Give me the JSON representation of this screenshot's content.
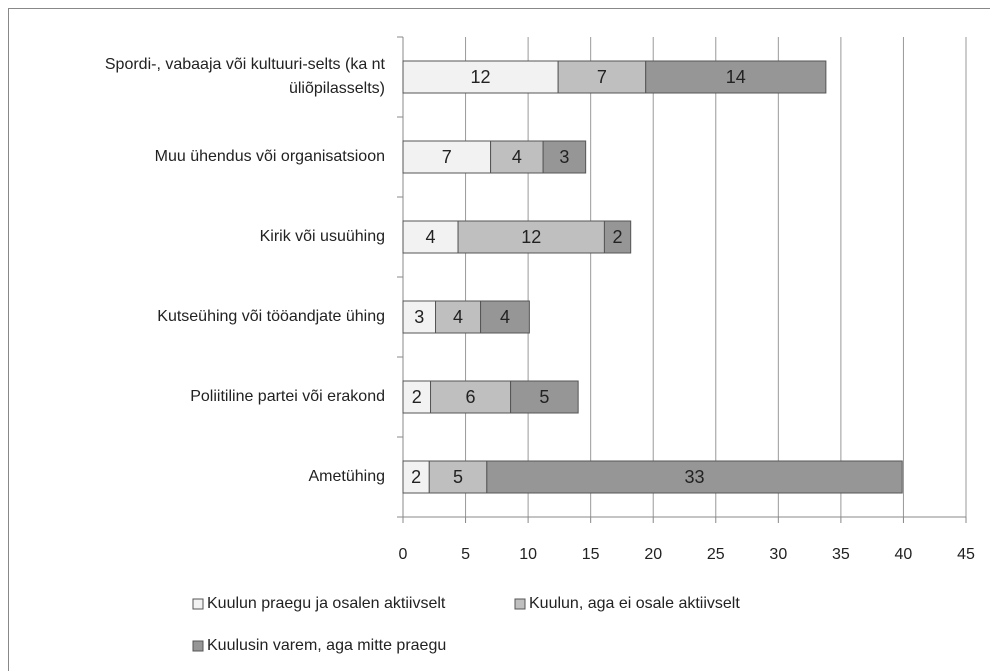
{
  "chart_data": {
    "type": "stacked_barh",
    "categories": [
      "Spordi-, vabaaja või kultuuri-selts (ka nt üliõpilasselts)",
      "Muu ühendus või organisatsioon",
      "Kirik või usuühing",
      "Kutseühing või tööandjate ühing",
      "Poliitiline partei või erakond",
      "Ametühing"
    ],
    "series": [
      {
        "name": "Kuulun praegu ja osalen aktiivselt",
        "color": "#f2f2f2",
        "values": [
          12.4,
          7.0,
          4.4,
          2.6,
          2.2,
          2.1
        ],
        "value_labels": [
          "12",
          "7",
          "4",
          "3",
          "2",
          "2"
        ]
      },
      {
        "name": "Kuulun, aga ei osale aktiivselt",
        "color": "#bfbfbf",
        "values": [
          7.0,
          4.2,
          11.7,
          3.6,
          6.4,
          4.6
        ],
        "value_labels": [
          "7",
          "4",
          "12",
          "4",
          "6",
          "5"
        ]
      },
      {
        "name": "Kuulusin varem, aga mitte praegu",
        "color": "#969696",
        "values": [
          14.4,
          3.4,
          2.1,
          3.9,
          5.4,
          33.2
        ],
        "value_labels": [
          "14",
          "3",
          "2",
          "4",
          "5",
          "33"
        ]
      }
    ],
    "xlim": [
      0,
      45
    ],
    "xticks": [
      0,
      5,
      10,
      15,
      20,
      25,
      30,
      35,
      40,
      45
    ],
    "grid": true,
    "legend": "bottom"
  }
}
